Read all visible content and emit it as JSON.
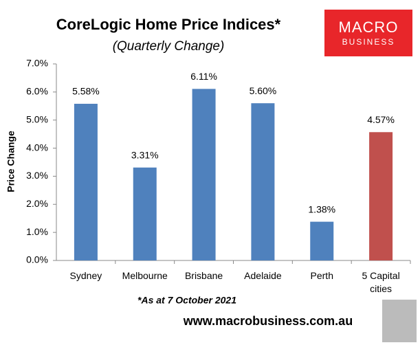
{
  "chart_data": {
    "type": "bar",
    "title": "CoreLogic Home Price Indices*",
    "subtitle": "(Quarterly Change)",
    "y_label": "Price Change",
    "categories": [
      "Sydney",
      "Melbourne",
      "Brisbane",
      "Adelaide",
      "Perth",
      "5 Capital cities"
    ],
    "values": [
      5.58,
      3.31,
      6.11,
      5.6,
      1.38,
      4.57
    ],
    "value_labels": [
      "5.58%",
      "3.31%",
      "6.11%",
      "5.60%",
      "1.38%",
      "4.57%"
    ],
    "colors": [
      "#4f81bd",
      "#4f81bd",
      "#4f81bd",
      "#4f81bd",
      "#4f81bd",
      "#c0504d"
    ],
    "ylim": [
      0,
      7
    ],
    "yticks": [
      {
        "value": 0,
        "label": "0.0%"
      },
      {
        "value": 1,
        "label": "1.0%"
      },
      {
        "value": 2,
        "label": "2.0%"
      },
      {
        "value": 3,
        "label": "3.0%"
      },
      {
        "value": 4,
        "label": "4.0%"
      },
      {
        "value": 5,
        "label": "5.0%"
      },
      {
        "value": 6,
        "label": "6.0%"
      },
      {
        "value": 7,
        "label": "7.0%"
      }
    ],
    "grid": false,
    "footnote": "*As at 7 October 2021",
    "source": "www.macrobusiness.com.au"
  },
  "logo": {
    "line1": "MACRO",
    "line2": "BUSINESS"
  }
}
